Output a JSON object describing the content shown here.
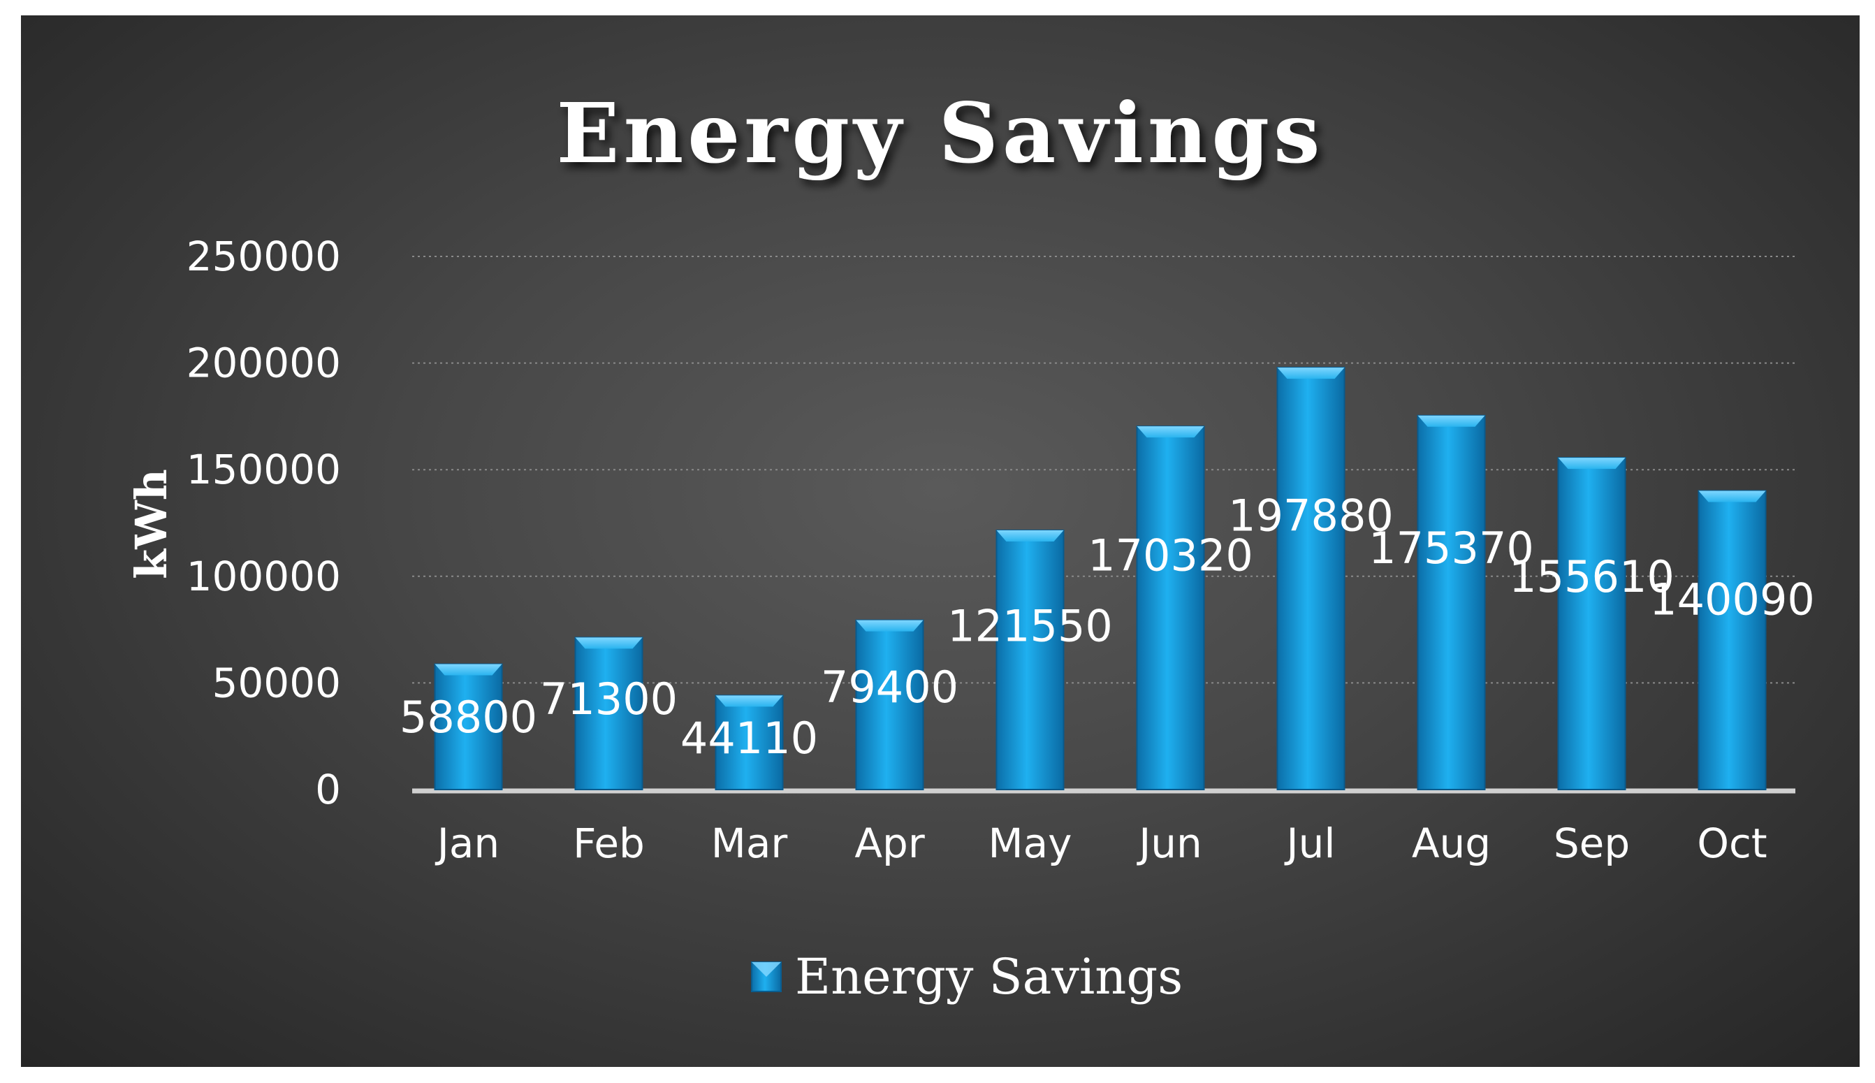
{
  "chart_data": {
    "type": "bar",
    "title": "Energy Savings",
    "xlabel": "",
    "ylabel": "kWh",
    "categories": [
      "Jan",
      "Feb",
      "Mar",
      "Apr",
      "May",
      "Jun",
      "Jul",
      "Aug",
      "Sep",
      "Oct"
    ],
    "series": [
      {
        "name": "Energy Savings",
        "values": [
          58800,
          71300,
          44110,
          79400,
          121550,
          170320,
          197880,
          175370,
          155610,
          140090
        ],
        "color": "#1ea7e8"
      }
    ],
    "ylim": [
      0,
      250000
    ],
    "yticks": [
      0,
      50000,
      100000,
      150000,
      200000,
      250000
    ],
    "grid": true,
    "legend": "bottom",
    "background": "#3a3a3a"
  }
}
